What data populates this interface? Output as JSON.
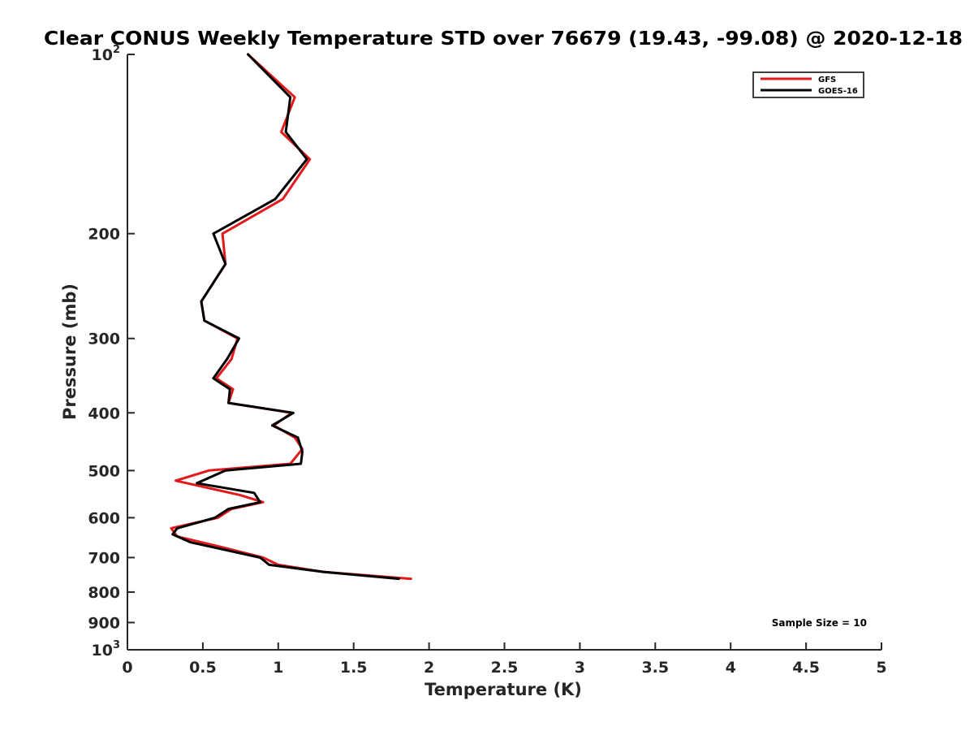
{
  "chart_data": {
    "type": "line",
    "title": "Clear CONUS Weekly Temperature STD over 76679 (19.43, -99.08) @ 2020-12-18",
    "xlabel": "Temperature (K)",
    "ylabel": "Pressure (mb)",
    "xlim": [
      0,
      5
    ],
    "ylim": [
      100,
      1000
    ],
    "y_scale": "log",
    "y_reversed": true,
    "x_ticks": [
      "0",
      "0.5",
      "1",
      "1.5",
      "2",
      "2.5",
      "3",
      "3.5",
      "4",
      "4.5",
      "5"
    ],
    "y_ticks": [
      {
        "value": 100,
        "base": "10",
        "exp": "2"
      },
      {
        "value": 200,
        "label": "200"
      },
      {
        "value": 300,
        "label": "300"
      },
      {
        "value": 400,
        "label": "400"
      },
      {
        "value": 500,
        "label": "500"
      },
      {
        "value": 600,
        "label": "600"
      },
      {
        "value": 700,
        "label": "700"
      },
      {
        "value": 800,
        "label": "800"
      },
      {
        "value": 900,
        "label": "900"
      },
      {
        "value": 1000,
        "base": "10",
        "exp": "3"
      }
    ],
    "grid": false,
    "legend_position": "top-right",
    "annotation": "Sample Size = 10",
    "series": [
      {
        "name": "GFS",
        "color": "#e31a1c",
        "points": [
          {
            "x": 0.8,
            "y": 100
          },
          {
            "x": 1.11,
            "y": 118
          },
          {
            "x": 1.02,
            "y": 135
          },
          {
            "x": 1.21,
            "y": 150
          },
          {
            "x": 1.03,
            "y": 175
          },
          {
            "x": 0.63,
            "y": 200
          },
          {
            "x": 0.65,
            "y": 225
          },
          {
            "x": 0.49,
            "y": 260
          },
          {
            "x": 0.51,
            "y": 280
          },
          {
            "x": 0.73,
            "y": 300
          },
          {
            "x": 0.69,
            "y": 325
          },
          {
            "x": 0.59,
            "y": 350
          },
          {
            "x": 0.7,
            "y": 365
          },
          {
            "x": 0.67,
            "y": 385
          },
          {
            "x": 1.09,
            "y": 400
          },
          {
            "x": 0.97,
            "y": 420
          },
          {
            "x": 1.11,
            "y": 440
          },
          {
            "x": 1.16,
            "y": 460
          },
          {
            "x": 1.08,
            "y": 487
          },
          {
            "x": 0.54,
            "y": 500
          },
          {
            "x": 0.32,
            "y": 520
          },
          {
            "x": 0.75,
            "y": 550
          },
          {
            "x": 0.9,
            "y": 565
          },
          {
            "x": 0.69,
            "y": 580
          },
          {
            "x": 0.6,
            "y": 600
          },
          {
            "x": 0.29,
            "y": 625
          },
          {
            "x": 0.33,
            "y": 645
          },
          {
            "x": 0.6,
            "y": 670
          },
          {
            "x": 0.9,
            "y": 700
          },
          {
            "x": 1.0,
            "y": 720
          },
          {
            "x": 1.3,
            "y": 740
          },
          {
            "x": 1.88,
            "y": 760
          }
        ]
      },
      {
        "name": "GOES-16",
        "color": "#000000",
        "points": [
          {
            "x": 0.8,
            "y": 100
          },
          {
            "x": 1.08,
            "y": 118
          },
          {
            "x": 1.05,
            "y": 135
          },
          {
            "x": 1.19,
            "y": 150
          },
          {
            "x": 0.98,
            "y": 175
          },
          {
            "x": 0.57,
            "y": 200
          },
          {
            "x": 0.65,
            "y": 225
          },
          {
            "x": 0.49,
            "y": 260
          },
          {
            "x": 0.51,
            "y": 280
          },
          {
            "x": 0.74,
            "y": 300
          },
          {
            "x": 0.66,
            "y": 325
          },
          {
            "x": 0.57,
            "y": 350
          },
          {
            "x": 0.68,
            "y": 365
          },
          {
            "x": 0.67,
            "y": 385
          },
          {
            "x": 1.1,
            "y": 400
          },
          {
            "x": 0.96,
            "y": 420
          },
          {
            "x": 1.13,
            "y": 440
          },
          {
            "x": 1.16,
            "y": 465
          },
          {
            "x": 1.15,
            "y": 487
          },
          {
            "x": 0.65,
            "y": 500
          },
          {
            "x": 0.46,
            "y": 525
          },
          {
            "x": 0.84,
            "y": 545
          },
          {
            "x": 0.88,
            "y": 565
          },
          {
            "x": 0.67,
            "y": 580
          },
          {
            "x": 0.58,
            "y": 600
          },
          {
            "x": 0.33,
            "y": 625
          },
          {
            "x": 0.3,
            "y": 640
          },
          {
            "x": 0.42,
            "y": 660
          },
          {
            "x": 0.88,
            "y": 700
          },
          {
            "x": 0.94,
            "y": 720
          },
          {
            "x": 1.3,
            "y": 740
          },
          {
            "x": 1.8,
            "y": 760
          }
        ]
      }
    ]
  }
}
